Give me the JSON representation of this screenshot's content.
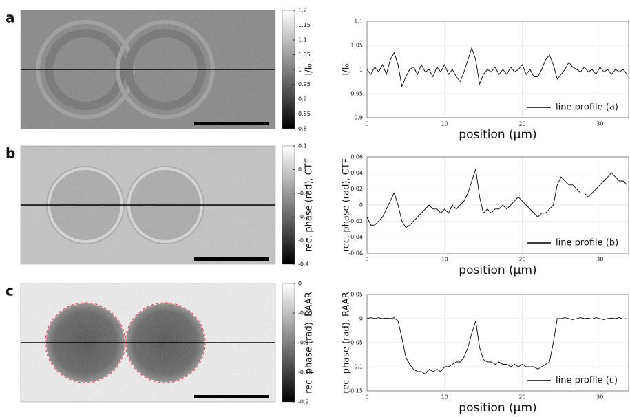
{
  "chart_data": [
    {
      "type": "line",
      "panel": "a",
      "xlabel": "position (µm)",
      "ylabel": "I/I₀",
      "xlim": [
        0,
        33.7
      ],
      "ylim": [
        0.9,
        1.1
      ],
      "xticks": [
        0,
        10,
        20,
        30
      ],
      "yticks": [
        0.9,
        0.95,
        1,
        1.05,
        1.1
      ],
      "grid": true,
      "legend": "lower right",
      "colorbar": {
        "label": "I/I₀",
        "lim": [
          0.8,
          1.2
        ],
        "ticks": [
          0.8,
          0.85,
          0.9,
          0.95,
          1,
          1.05,
          1.1,
          1.15,
          1.2
        ]
      },
      "x": [
        0,
        0.5,
        1,
        1.5,
        2,
        2.5,
        3,
        3.5,
        4,
        4.5,
        5,
        5.5,
        6,
        6.5,
        7,
        7.5,
        8,
        8.5,
        9,
        9.5,
        10,
        10.5,
        11,
        11.5,
        12,
        12.5,
        13,
        13.5,
        14,
        14.5,
        15,
        15.5,
        16,
        16.5,
        17,
        17.5,
        18,
        18.5,
        19,
        19.5,
        20,
        20.5,
        21,
        21.5,
        22,
        22.5,
        23,
        23.5,
        24,
        24.5,
        25,
        25.5,
        26,
        26.5,
        27,
        27.5,
        28,
        28.5,
        29,
        29.5,
        30,
        30.5,
        31,
        31.5,
        32,
        32.5,
        33,
        33.5
      ],
      "series": [
        {
          "name": "line profile (a)",
          "color": "#000000",
          "values": [
            1.0,
            0.99,
            1.005,
            0.995,
            1.01,
            0.99,
            1.02,
            1.035,
            1.01,
            0.965,
            0.985,
            1.0,
            1.005,
            0.99,
            1.01,
            0.995,
            1.0,
            0.985,
            1.005,
            0.995,
            1.01,
            0.99,
            1.0,
            0.985,
            0.975,
            0.995,
            1.02,
            1.045,
            1.02,
            0.97,
            0.99,
            1.0,
            0.995,
            1.005,
            0.99,
            1.0,
            0.99,
            1.005,
            0.995,
            1.0,
            1.01,
            0.99,
            1.0,
            0.985,
            0.985,
            1.0,
            1.02,
            1.03,
            1.01,
            0.98,
            0.99,
            1.0,
            1.015,
            1.005,
            1.0,
            0.995,
            1.005,
            0.995,
            1.0,
            0.99,
            1.005,
            0.995,
            1.0,
            0.99,
            1.0,
            0.995,
            1.0,
            0.99
          ]
        }
      ]
    },
    {
      "type": "line",
      "panel": "b",
      "xlabel": "position (µm)",
      "ylabel": "rec. phase (rad), CTF",
      "xlim": [
        0,
        33.7
      ],
      "ylim": [
        -0.06,
        0.06
      ],
      "xticks": [
        0,
        10,
        20,
        30
      ],
      "yticks": [
        -0.06,
        -0.04,
        -0.02,
        0,
        0.02,
        0.04,
        0.06
      ],
      "grid": true,
      "legend": "lower right",
      "colorbar": {
        "label": "rec. phase (rad), CTF",
        "lim": [
          -0.4,
          0.1
        ],
        "ticks": [
          -0.4,
          -0.3,
          -0.2,
          -0.1,
          0,
          0.1
        ]
      },
      "x": [
        0,
        0.5,
        1,
        1.5,
        2,
        2.5,
        3,
        3.5,
        4,
        4.5,
        5,
        5.5,
        6,
        6.5,
        7,
        7.5,
        8,
        8.5,
        9,
        9.5,
        10,
        10.5,
        11,
        11.5,
        12,
        12.5,
        13,
        13.5,
        14,
        14.5,
        15,
        15.5,
        16,
        16.5,
        17,
        17.5,
        18,
        18.5,
        19,
        19.5,
        20,
        20.5,
        21,
        21.5,
        22,
        22.5,
        23,
        23.5,
        24,
        24.5,
        25,
        25.5,
        26,
        26.5,
        27,
        27.5,
        28,
        28.5,
        29,
        29.5,
        30,
        30.5,
        31,
        31.5,
        32,
        32.5,
        33,
        33.5
      ],
      "series": [
        {
          "name": "line profile (b)",
          "color": "#000000",
          "values": [
            -0.015,
            -0.025,
            -0.025,
            -0.02,
            -0.015,
            -0.005,
            0.005,
            0.015,
            0.0,
            -0.02,
            -0.028,
            -0.025,
            -0.02,
            -0.015,
            -0.01,
            -0.005,
            0.0,
            -0.005,
            -0.005,
            -0.01,
            -0.005,
            -0.01,
            0.0,
            -0.005,
            0.0,
            0.005,
            0.015,
            0.03,
            0.045,
            0.01,
            -0.01,
            -0.005,
            -0.01,
            -0.005,
            -0.005,
            0.0,
            -0.005,
            0.0,
            0.005,
            0.01,
            0.005,
            0.0,
            -0.005,
            -0.01,
            -0.015,
            -0.01,
            -0.01,
            -0.005,
            0.0,
            0.025,
            0.035,
            0.03,
            0.025,
            0.025,
            0.02,
            0.015,
            0.015,
            0.01,
            0.015,
            0.02,
            0.025,
            0.03,
            0.035,
            0.04,
            0.035,
            0.03,
            0.03,
            0.025
          ]
        }
      ]
    },
    {
      "type": "line",
      "panel": "c",
      "xlabel": "position (µm)",
      "ylabel": "rec. phase (rad), RAAR",
      "xlim": [
        0,
        33.7
      ],
      "ylim": [
        -0.15,
        0.05
      ],
      "xticks": [
        0,
        10,
        20,
        30
      ],
      "yticks": [
        -0.15,
        -0.1,
        -0.05,
        0,
        0.05
      ],
      "grid": true,
      "legend": "lower right",
      "colorbar": {
        "label": "rec. phase (rad), RAAR",
        "lim": [
          -0.2,
          0
        ],
        "ticks": [
          -0.2,
          -0.15,
          -0.1,
          -0.05,
          0
        ]
      },
      "x": [
        0,
        0.5,
        1,
        1.5,
        2,
        2.5,
        3,
        3.5,
        4,
        4.5,
        5,
        5.5,
        6,
        6.5,
        7,
        7.5,
        8,
        8.5,
        9,
        9.5,
        10,
        10.5,
        11,
        11.5,
        12,
        12.5,
        13,
        13.5,
        14,
        14.5,
        15,
        15.5,
        16,
        16.5,
        17,
        17.5,
        18,
        18.5,
        19,
        19.5,
        20,
        20.5,
        21,
        21.5,
        22,
        22.5,
        23,
        23.5,
        24,
        24.5,
        25,
        25.5,
        26,
        26.5,
        27,
        27.5,
        28,
        28.5,
        29,
        29.5,
        30,
        30.5,
        31,
        31.5,
        32,
        32.5,
        33,
        33.5
      ],
      "series": [
        {
          "name": "line profile (c)",
          "color": "#000000",
          "values": [
            0.0,
            0.002,
            0.0,
            0.002,
            0.0,
            0.001,
            0.0,
            0.002,
            -0.005,
            -0.04,
            -0.08,
            -0.095,
            -0.105,
            -0.11,
            -0.11,
            -0.115,
            -0.105,
            -0.11,
            -0.105,
            -0.11,
            -0.1,
            -0.1,
            -0.095,
            -0.09,
            -0.09,
            -0.08,
            -0.06,
            -0.03,
            -0.005,
            -0.06,
            -0.085,
            -0.09,
            -0.09,
            -0.095,
            -0.09,
            -0.095,
            -0.095,
            -0.1,
            -0.095,
            -0.1,
            -0.095,
            -0.1,
            -0.1,
            -0.1,
            -0.105,
            -0.1,
            -0.095,
            -0.09,
            -0.05,
            0.0,
            0.0,
            0.002,
            0.0,
            -0.002,
            0.0,
            0.002,
            0.0,
            0.001,
            -0.001,
            0.002,
            0.0,
            -0.002,
            0.0,
            0.001,
            0.0,
            0.002,
            -0.001,
            0.0
          ]
        }
      ]
    }
  ]
}
